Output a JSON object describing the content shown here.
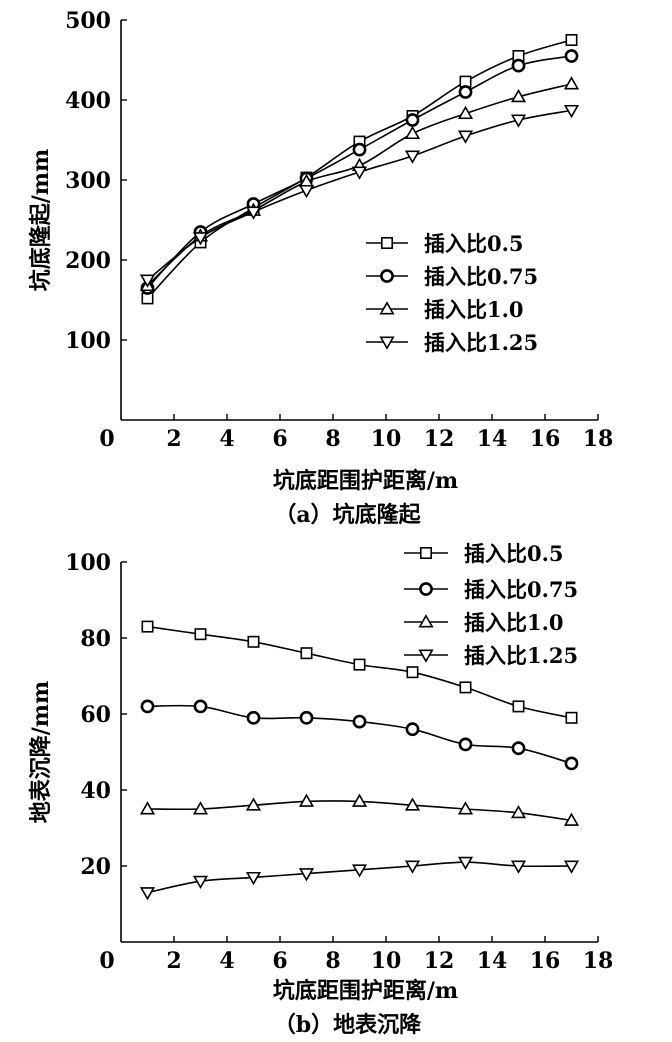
{
  "chart_data": [
    {
      "type": "line",
      "caption": "（a）坑底隆起",
      "xlabel": "坑底距围护距离/m",
      "ylabel": "坑底隆起/mm",
      "xlim": [
        0,
        18
      ],
      "ylim": [
        0,
        500
      ],
      "xticks": [
        0,
        2,
        4,
        6,
        8,
        10,
        12,
        14,
        16,
        18
      ],
      "yticks": [
        100,
        200,
        300,
        400,
        500
      ],
      "x": [
        1,
        3,
        5,
        7,
        9,
        11,
        13,
        15,
        17
      ],
      "legend_position": "center-right",
      "grid": false,
      "series": [
        {
          "name": "插入比0.5",
          "marker": "square",
          "values": [
            152,
            222,
            265,
            303,
            348,
            380,
            423,
            455,
            475
          ]
        },
        {
          "name": "插入比0.75",
          "marker": "circle",
          "values": [
            165,
            235,
            270,
            302,
            338,
            375,
            410,
            443,
            455
          ]
        },
        {
          "name": "插入比1.0",
          "marker": "triangle-up",
          "values": [
            168,
            230,
            262,
            298,
            318,
            358,
            383,
            404,
            420
          ]
        },
        {
          "name": "插入比1.25",
          "marker": "triangle-down",
          "values": [
            175,
            228,
            260,
            287,
            310,
            330,
            355,
            375,
            387
          ]
        }
      ]
    },
    {
      "type": "line",
      "caption": "（b）地表沉降",
      "xlabel": "坑底距围护距离/m",
      "ylabel": "地表沉降/mm",
      "xlim": [
        0,
        18
      ],
      "ylim": [
        0,
        100
      ],
      "xticks": [
        0,
        2,
        4,
        6,
        8,
        10,
        12,
        14,
        16,
        18
      ],
      "yticks": [
        20,
        40,
        60,
        80,
        100
      ],
      "x": [
        1,
        3,
        5,
        7,
        9,
        11,
        13,
        15,
        17
      ],
      "legend_position": "top-right",
      "grid": false,
      "series": [
        {
          "name": "插入比0.5",
          "marker": "square",
          "values": [
            83,
            81,
            79,
            76,
            73,
            71,
            67,
            62,
            59
          ]
        },
        {
          "name": "插入比0.75",
          "marker": "circle",
          "values": [
            62,
            62,
            59,
            59,
            58,
            56,
            52,
            51,
            47
          ]
        },
        {
          "name": "插入比1.0",
          "marker": "triangle-up",
          "values": [
            35,
            35,
            36,
            37,
            37,
            36,
            35,
            34,
            32
          ]
        },
        {
          "name": "插入比1.25",
          "marker": "triangle-down",
          "values": [
            13,
            16,
            17,
            18,
            19,
            20,
            21,
            20,
            20
          ]
        }
      ]
    }
  ]
}
